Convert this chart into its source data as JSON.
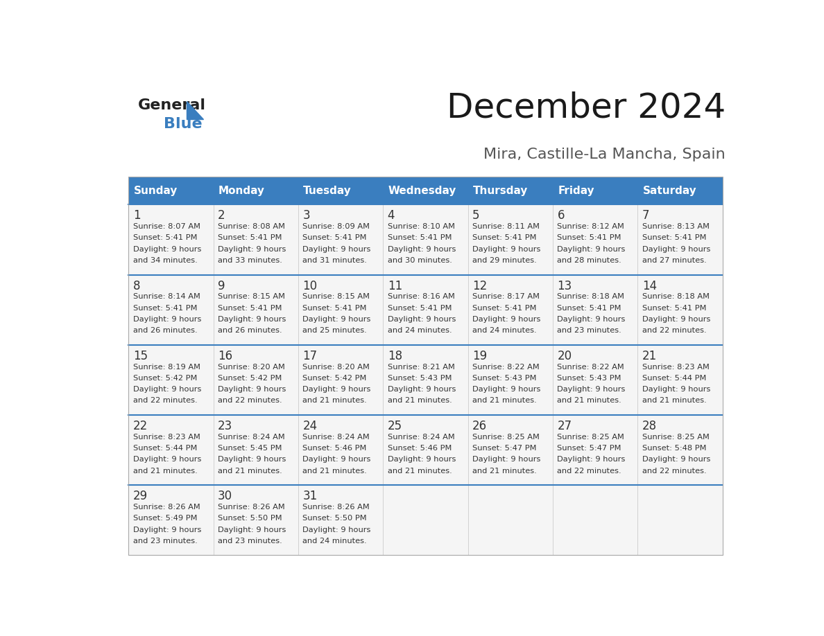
{
  "title": "December 2024",
  "subtitle": "Mira, Castille-La Mancha, Spain",
  "header_color": "#3a7ebf",
  "header_text_color": "#ffffff",
  "day_names": [
    "Sunday",
    "Monday",
    "Tuesday",
    "Wednesday",
    "Thursday",
    "Friday",
    "Saturday"
  ],
  "background_color": "#ffffff",
  "cell_bg_color": "#f5f5f5",
  "separator_color": "#3a7ebf",
  "separator_color2": "#cccccc",
  "day_number_color": "#333333",
  "day_text_color": "#333333",
  "title_fontsize": 36,
  "subtitle_fontsize": 16,
  "header_fontsize": 11,
  "day_num_fontsize": 12,
  "info_fontsize": 8.2,
  "days": [
    {
      "day": 1,
      "row": 0,
      "col": 0,
      "sunrise": "8:07 AM",
      "sunset": "5:41 PM",
      "daylight": "9 hours and 34 minutes."
    },
    {
      "day": 2,
      "row": 0,
      "col": 1,
      "sunrise": "8:08 AM",
      "sunset": "5:41 PM",
      "daylight": "9 hours and 33 minutes."
    },
    {
      "day": 3,
      "row": 0,
      "col": 2,
      "sunrise": "8:09 AM",
      "sunset": "5:41 PM",
      "daylight": "9 hours and 31 minutes."
    },
    {
      "day": 4,
      "row": 0,
      "col": 3,
      "sunrise": "8:10 AM",
      "sunset": "5:41 PM",
      "daylight": "9 hours and 30 minutes."
    },
    {
      "day": 5,
      "row": 0,
      "col": 4,
      "sunrise": "8:11 AM",
      "sunset": "5:41 PM",
      "daylight": "9 hours and 29 minutes."
    },
    {
      "day": 6,
      "row": 0,
      "col": 5,
      "sunrise": "8:12 AM",
      "sunset": "5:41 PM",
      "daylight": "9 hours and 28 minutes."
    },
    {
      "day": 7,
      "row": 0,
      "col": 6,
      "sunrise": "8:13 AM",
      "sunset": "5:41 PM",
      "daylight": "9 hours and 27 minutes."
    },
    {
      "day": 8,
      "row": 1,
      "col": 0,
      "sunrise": "8:14 AM",
      "sunset": "5:41 PM",
      "daylight": "9 hours and 26 minutes."
    },
    {
      "day": 9,
      "row": 1,
      "col": 1,
      "sunrise": "8:15 AM",
      "sunset": "5:41 PM",
      "daylight": "9 hours and 26 minutes."
    },
    {
      "day": 10,
      "row": 1,
      "col": 2,
      "sunrise": "8:15 AM",
      "sunset": "5:41 PM",
      "daylight": "9 hours and 25 minutes."
    },
    {
      "day": 11,
      "row": 1,
      "col": 3,
      "sunrise": "8:16 AM",
      "sunset": "5:41 PM",
      "daylight": "9 hours and 24 minutes."
    },
    {
      "day": 12,
      "row": 1,
      "col": 4,
      "sunrise": "8:17 AM",
      "sunset": "5:41 PM",
      "daylight": "9 hours and 24 minutes."
    },
    {
      "day": 13,
      "row": 1,
      "col": 5,
      "sunrise": "8:18 AM",
      "sunset": "5:41 PM",
      "daylight": "9 hours and 23 minutes."
    },
    {
      "day": 14,
      "row": 1,
      "col": 6,
      "sunrise": "8:18 AM",
      "sunset": "5:41 PM",
      "daylight": "9 hours and 22 minutes."
    },
    {
      "day": 15,
      "row": 2,
      "col": 0,
      "sunrise": "8:19 AM",
      "sunset": "5:42 PM",
      "daylight": "9 hours and 22 minutes."
    },
    {
      "day": 16,
      "row": 2,
      "col": 1,
      "sunrise": "8:20 AM",
      "sunset": "5:42 PM",
      "daylight": "9 hours and 22 minutes."
    },
    {
      "day": 17,
      "row": 2,
      "col": 2,
      "sunrise": "8:20 AM",
      "sunset": "5:42 PM",
      "daylight": "9 hours and 21 minutes."
    },
    {
      "day": 18,
      "row": 2,
      "col": 3,
      "sunrise": "8:21 AM",
      "sunset": "5:43 PM",
      "daylight": "9 hours and 21 minutes."
    },
    {
      "day": 19,
      "row": 2,
      "col": 4,
      "sunrise": "8:22 AM",
      "sunset": "5:43 PM",
      "daylight": "9 hours and 21 minutes."
    },
    {
      "day": 20,
      "row": 2,
      "col": 5,
      "sunrise": "8:22 AM",
      "sunset": "5:43 PM",
      "daylight": "9 hours and 21 minutes."
    },
    {
      "day": 21,
      "row": 2,
      "col": 6,
      "sunrise": "8:23 AM",
      "sunset": "5:44 PM",
      "daylight": "9 hours and 21 minutes."
    },
    {
      "day": 22,
      "row": 3,
      "col": 0,
      "sunrise": "8:23 AM",
      "sunset": "5:44 PM",
      "daylight": "9 hours and 21 minutes."
    },
    {
      "day": 23,
      "row": 3,
      "col": 1,
      "sunrise": "8:24 AM",
      "sunset": "5:45 PM",
      "daylight": "9 hours and 21 minutes."
    },
    {
      "day": 24,
      "row": 3,
      "col": 2,
      "sunrise": "8:24 AM",
      "sunset": "5:46 PM",
      "daylight": "9 hours and 21 minutes."
    },
    {
      "day": 25,
      "row": 3,
      "col": 3,
      "sunrise": "8:24 AM",
      "sunset": "5:46 PM",
      "daylight": "9 hours and 21 minutes."
    },
    {
      "day": 26,
      "row": 3,
      "col": 4,
      "sunrise": "8:25 AM",
      "sunset": "5:47 PM",
      "daylight": "9 hours and 21 minutes."
    },
    {
      "day": 27,
      "row": 3,
      "col": 5,
      "sunrise": "8:25 AM",
      "sunset": "5:47 PM",
      "daylight": "9 hours and 22 minutes."
    },
    {
      "day": 28,
      "row": 3,
      "col": 6,
      "sunrise": "8:25 AM",
      "sunset": "5:48 PM",
      "daylight": "9 hours and 22 minutes."
    },
    {
      "day": 29,
      "row": 4,
      "col": 0,
      "sunrise": "8:26 AM",
      "sunset": "5:49 PM",
      "daylight": "9 hours and 23 minutes."
    },
    {
      "day": 30,
      "row": 4,
      "col": 1,
      "sunrise": "8:26 AM",
      "sunset": "5:50 PM",
      "daylight": "9 hours and 23 minutes."
    },
    {
      "day": 31,
      "row": 4,
      "col": 2,
      "sunrise": "8:26 AM",
      "sunset": "5:50 PM",
      "daylight": "9 hours and 24 minutes."
    }
  ]
}
